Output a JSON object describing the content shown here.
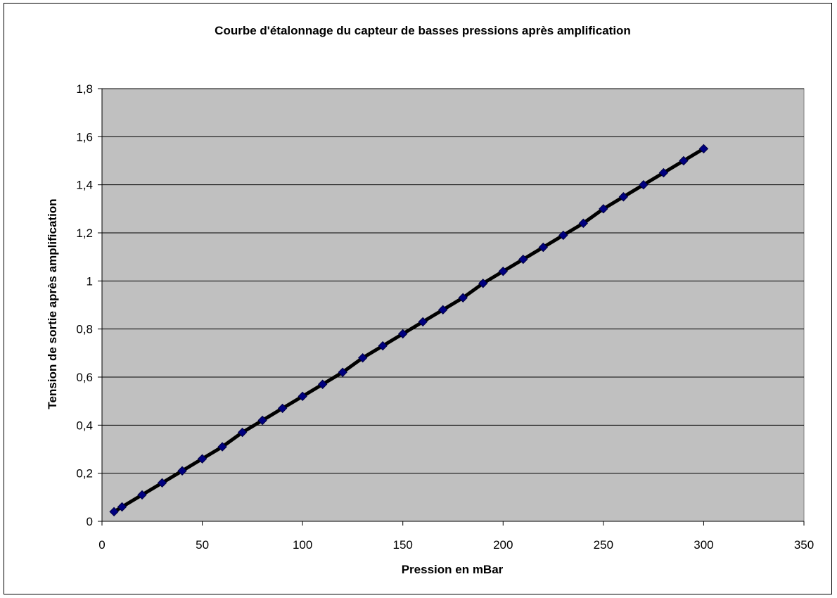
{
  "chart_data": {
    "type": "line",
    "title": "Courbe d'étalonnage du capteur de basses pressions après amplification",
    "xlabel": "Pression en mBar",
    "ylabel": "Tension de sortie après amplification",
    "xlim": [
      0,
      350
    ],
    "ylim": [
      0,
      1.8
    ],
    "x_ticks": [
      "0",
      "50",
      "100",
      "150",
      "200",
      "250",
      "300",
      "350"
    ],
    "y_ticks": [
      "0",
      "0,2",
      "0,4",
      "0,6",
      "0,8",
      "1",
      "1,2",
      "1,4",
      "1,6",
      "1,8"
    ],
    "grid": "horizontal",
    "legend": "none",
    "series": [
      {
        "x": [
          6,
          10,
          20,
          30,
          40,
          50,
          60,
          70,
          80,
          90,
          100,
          110,
          120,
          130,
          140,
          150,
          160,
          170,
          180,
          190,
          200,
          210,
          220,
          230,
          240,
          250,
          260,
          270,
          280,
          290,
          300
        ],
        "y": [
          0.04,
          0.06,
          0.11,
          0.16,
          0.21,
          0.26,
          0.31,
          0.37,
          0.42,
          0.47,
          0.52,
          0.57,
          0.62,
          0.68,
          0.73,
          0.78,
          0.83,
          0.88,
          0.93,
          0.99,
          1.04,
          1.09,
          1.14,
          1.19,
          1.24,
          1.3,
          1.35,
          1.4,
          1.45,
          1.5,
          1.55
        ],
        "line_color": "#000000",
        "marker": "diamond",
        "marker_color": "#000080"
      }
    ],
    "plot_background": "#c0c0c0",
    "gridline_color": "#000000"
  }
}
